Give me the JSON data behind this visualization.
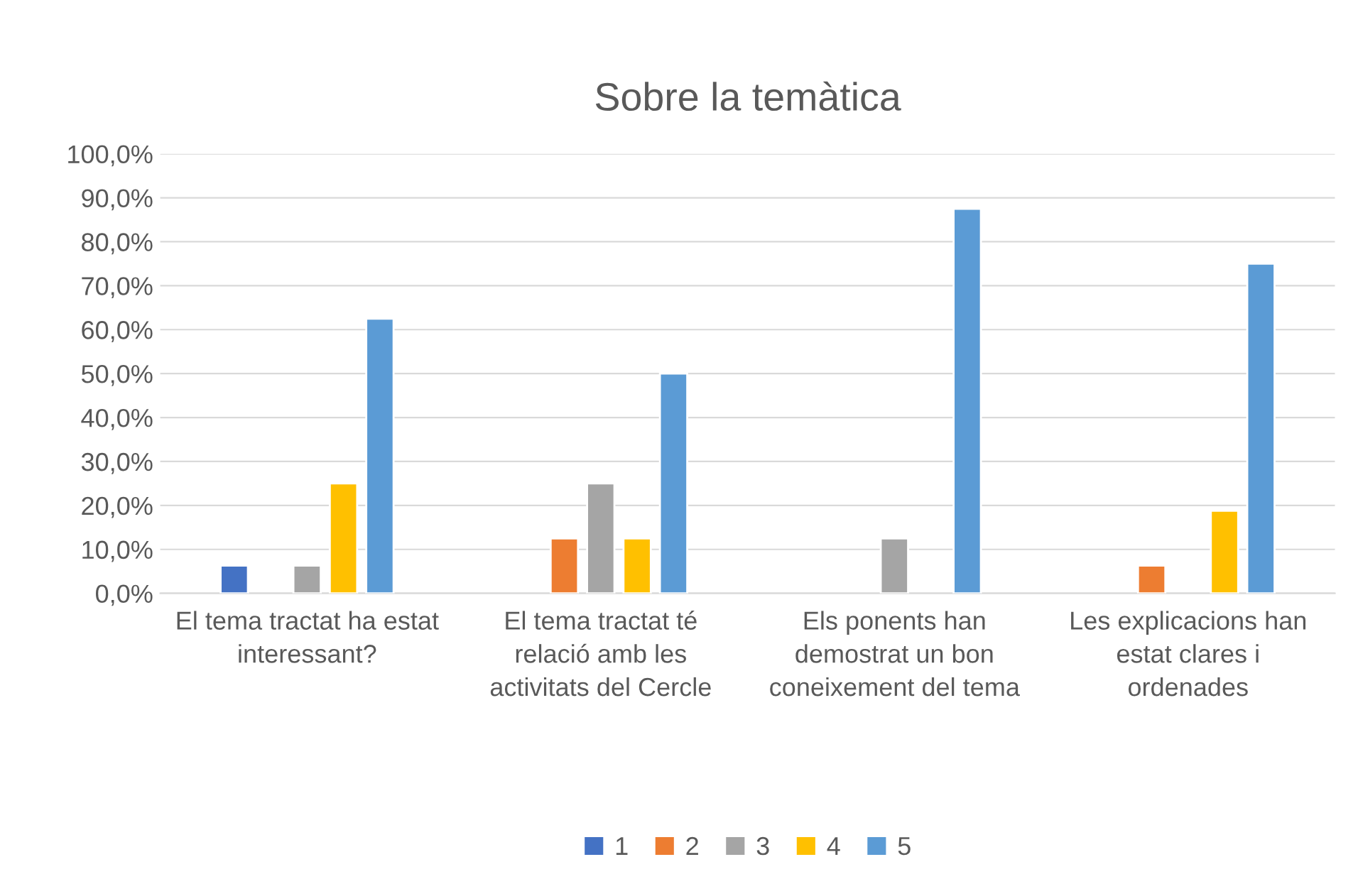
{
  "chart_data": {
    "type": "bar",
    "title": "Sobre la temàtica",
    "categories": [
      "El tema tractat ha estat interessant?",
      "El tema tractat té relació amb les activitats del Cercle",
      "Els ponents han demostrat un bon coneixement del tema",
      "Les explicacions han estat clares i ordenades"
    ],
    "series": [
      {
        "name": "1",
        "color": "#4472c4",
        "values": [
          6.3,
          null,
          null,
          null
        ]
      },
      {
        "name": "2",
        "color": "#ed7d31",
        "values": [
          null,
          12.5,
          null,
          6.3
        ]
      },
      {
        "name": "3",
        "color": "#a5a5a5",
        "values": [
          6.3,
          25,
          12.5,
          null
        ]
      },
      {
        "name": "4",
        "color": "#ffc000",
        "values": [
          25,
          12.5,
          null,
          18.8
        ]
      },
      {
        "name": "5",
        "color": "#5b9bd5",
        "values": [
          62.5,
          50,
          87.5,
          75
        ]
      }
    ],
    "ylim": [
      0,
      100
    ],
    "yticks": [
      {
        "value": 0,
        "label": "0,0%"
      },
      {
        "value": 10,
        "label": "10,0%"
      },
      {
        "value": 20,
        "label": "20,0%"
      },
      {
        "value": 30,
        "label": "30,0%"
      },
      {
        "value": 40,
        "label": "40,0%"
      },
      {
        "value": 50,
        "label": "50,0%"
      },
      {
        "value": 60,
        "label": "60,0%"
      },
      {
        "value": 70,
        "label": "70,0%"
      },
      {
        "value": 80,
        "label": "80,0%"
      },
      {
        "value": 90,
        "label": "90,0%"
      },
      {
        "value": 100,
        "label": "100,0%"
      }
    ],
    "grid": "y",
    "legend": "bottom"
  }
}
